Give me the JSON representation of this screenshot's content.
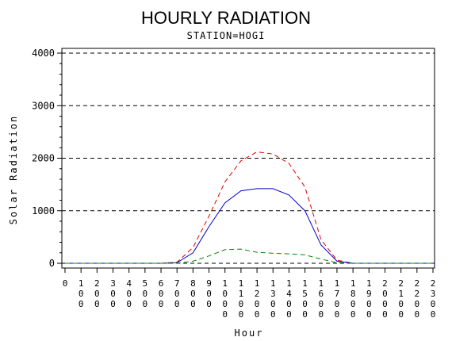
{
  "chart_data": {
    "type": "line",
    "title": "HOURLY RADIATION",
    "subtitle": "STATION=HOGI",
    "xlabel": "Hour",
    "ylabel": "Solar Radiation",
    "x": [
      0,
      100,
      200,
      300,
      400,
      500,
      600,
      700,
      800,
      900,
      1000,
      1100,
      1200,
      1300,
      1400,
      1500,
      1600,
      1700,
      1800,
      1900,
      2000,
      2100,
      2200,
      2300
    ],
    "x_tick_labels": [
      "0",
      "100",
      "200",
      "300",
      "400",
      "500",
      "600",
      "700",
      "800",
      "900",
      "1000",
      "1100",
      "1200",
      "1300",
      "1400",
      "1500",
      "1600",
      "1700",
      "1800",
      "1900",
      "2000",
      "2100",
      "2200",
      "2300"
    ],
    "y_ticks": [
      0,
      1000,
      2000,
      3000,
      4000
    ],
    "xlim": [
      0,
      2300
    ],
    "ylim": [
      0,
      4000
    ],
    "grid": "horizontal-dashed",
    "series": [
      {
        "color": "#dd0000",
        "dash": "dashed",
        "values": [
          0,
          0,
          0,
          0,
          0,
          0,
          0,
          20,
          300,
          900,
          1550,
          1950,
          2120,
          2080,
          1900,
          1450,
          450,
          60,
          0,
          0,
          0,
          0,
          0,
          0
        ]
      },
      {
        "color": "#0000cc",
        "dash": "solid",
        "values": [
          0,
          0,
          0,
          0,
          0,
          0,
          0,
          10,
          200,
          700,
          1150,
          1380,
          1420,
          1420,
          1300,
          1000,
          350,
          40,
          0,
          0,
          0,
          0,
          0,
          0
        ]
      },
      {
        "color": "#008800",
        "dash": "dashed",
        "values": [
          0,
          0,
          0,
          0,
          0,
          0,
          0,
          0,
          40,
          140,
          260,
          270,
          210,
          190,
          180,
          160,
          80,
          10,
          0,
          0,
          0,
          0,
          0,
          0
        ]
      }
    ]
  }
}
